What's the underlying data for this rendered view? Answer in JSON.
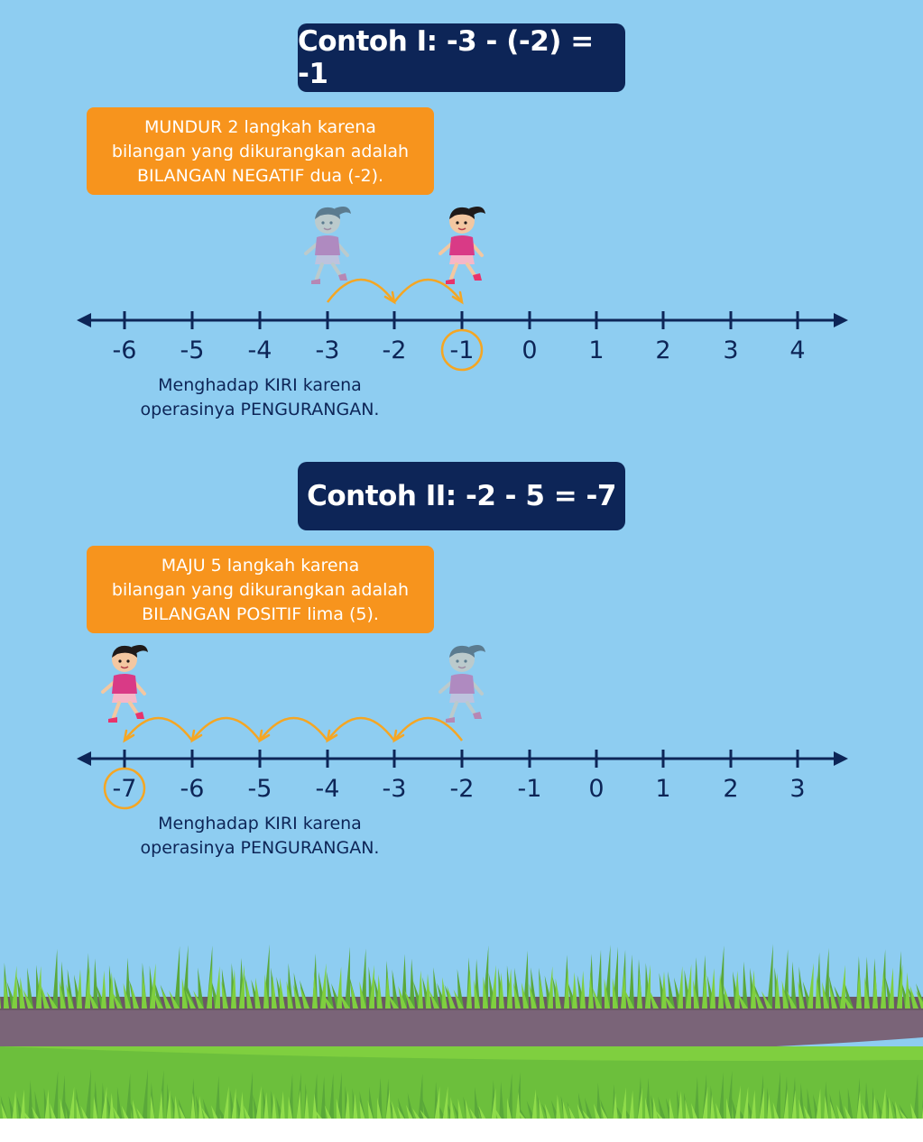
{
  "example1": {
    "title": "Contoh I: -3 - (-2) = -1",
    "note": [
      "MUNDUR 2 langkah karena",
      "bilangan yang dikurangkan adalah",
      "BILANGAN NEGATIF dua (-2)."
    ],
    "ticks": [
      "-6",
      "-5",
      "-4",
      "-3",
      "-2",
      "-1",
      "0",
      "1",
      "2",
      "3",
      "4"
    ],
    "start_index": 3,
    "end_index": 5,
    "circled_index": 5,
    "caption": [
      "Menghadap KIRI karena",
      "operasinya PENGURANGAN."
    ]
  },
  "example2": {
    "title": "Contoh II: -2 - 5 = -7",
    "note": [
      "MAJU 5 langkah karena",
      "bilangan yang dikurangkan adalah",
      "BILANGAN POSITIF lima (5)."
    ],
    "ticks": [
      "-7",
      "-6",
      "-5",
      "-4",
      "-3",
      "-2",
      "-1",
      "0",
      "1",
      "2",
      "3"
    ],
    "start_index": 5,
    "end_index": 0,
    "circled_index": 0,
    "caption": [
      "Menghadap KIRI karena",
      "operasinya PENGURANGAN."
    ]
  },
  "colors": {
    "sky": "#8ecdf1",
    "navy": "#0d2557",
    "orange": "#f7941d",
    "arc": "#f5a623",
    "grass": "#6cbf3c",
    "path": "#7a6478"
  }
}
